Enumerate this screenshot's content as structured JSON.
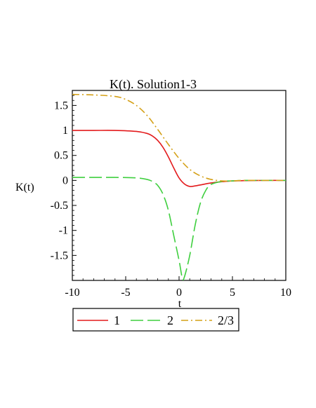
{
  "chart_data": {
    "type": "line",
    "title": "K(t). Solution1-3",
    "xlabel": "t",
    "ylabel": "K(t)",
    "xlim": [
      -10,
      10
    ],
    "ylim": [
      -2.0,
      1.8
    ],
    "xticks": [
      -10,
      -5,
      0,
      5,
      10
    ],
    "xtick_labels": [
      "-10",
      "-5",
      "0",
      "5",
      "10"
    ],
    "yticks": [
      1.5,
      1,
      0.5,
      0,
      -0.5,
      -1,
      -1.5
    ],
    "ytick_labels": [
      "1.5",
      "1",
      "0.5",
      "0",
      "-0.5",
      "-1",
      "-1.5"
    ],
    "grid": false,
    "legend_position": "bottom",
    "series": [
      {
        "name": "1",
        "color": "#e31a1c",
        "dash": "solid",
        "x": [
          -10,
          -8,
          -6,
          -4,
          -3,
          -2.5,
          -2,
          -1.5,
          -1,
          -0.5,
          0,
          0.5,
          1,
          1.5,
          2,
          3,
          4,
          5,
          6,
          8,
          10
        ],
        "y": [
          1.0,
          1.0,
          1.0,
          0.98,
          0.94,
          0.89,
          0.8,
          0.66,
          0.47,
          0.25,
          0.05,
          -0.07,
          -0.12,
          -0.11,
          -0.09,
          -0.05,
          -0.025,
          -0.01,
          -0.005,
          0.0,
          0.0
        ]
      },
      {
        "name": "2",
        "color": "#3fcf3f",
        "dash": "long",
        "x": [
          -10,
          -8,
          -6,
          -4,
          -3,
          -2.5,
          -2,
          -1.5,
          -1,
          -0.5,
          0,
          0.3,
          0.5,
          1,
          1.5,
          2,
          2.5,
          3,
          4,
          5,
          6,
          8,
          10
        ],
        "y": [
          0.06,
          0.06,
          0.06,
          0.05,
          0.02,
          -0.02,
          -0.1,
          -0.28,
          -0.6,
          -1.1,
          -1.6,
          -1.95,
          -1.93,
          -1.5,
          -0.9,
          -0.45,
          -0.2,
          -0.08,
          -0.02,
          -0.01,
          0.0,
          0.0,
          0.0
        ]
      },
      {
        "name": "2/3",
        "color": "#d4a017",
        "dash": "dashdot",
        "x": [
          -10,
          -8,
          -6,
          -5,
          -4,
          -3,
          -2,
          -1,
          0,
          1,
          2,
          3,
          4,
          5,
          6,
          8,
          10
        ],
        "y": [
          1.72,
          1.71,
          1.68,
          1.62,
          1.5,
          1.3,
          1.02,
          0.72,
          0.44,
          0.22,
          0.09,
          0.02,
          -0.01,
          -0.01,
          0.0,
          0.0,
          0.0
        ]
      }
    ]
  }
}
